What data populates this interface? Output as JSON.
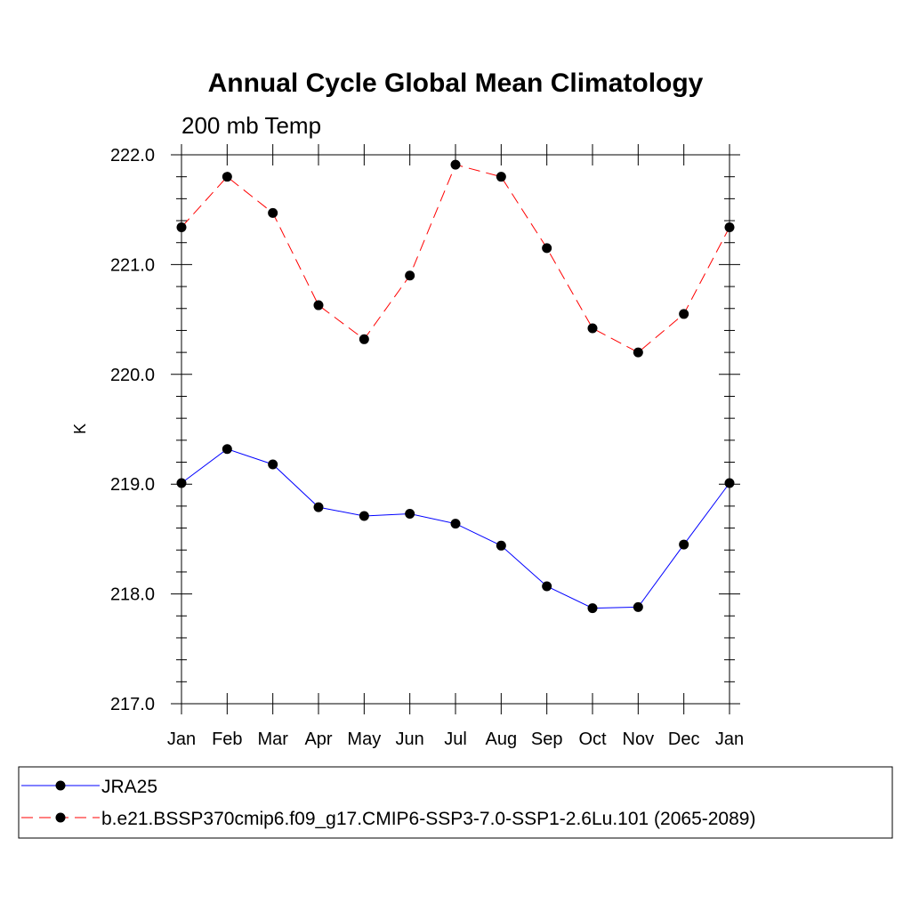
{
  "chart_data": {
    "type": "line",
    "title": "Annual Cycle Global Mean Climatology",
    "subtitle": "200 mb Temp",
    "ylabel": "K",
    "xlabel": "",
    "categories": [
      "Jan",
      "Feb",
      "Mar",
      "Apr",
      "May",
      "Jun",
      "Jul",
      "Aug",
      "Sep",
      "Oct",
      "Nov",
      "Dec",
      "Jan"
    ],
    "ylim": [
      217.0,
      222.0
    ],
    "yticks": [
      "217.0",
      "218.0",
      "219.0",
      "220.0",
      "221.0",
      "222.0"
    ],
    "grid": false,
    "legend_position": "bottom",
    "series": [
      {
        "name": "JRA25",
        "color": "#0000ff",
        "line_style": "solid",
        "marker": "filled-circle",
        "values": [
          219.01,
          219.32,
          219.18,
          218.79,
          218.71,
          218.73,
          218.64,
          218.44,
          218.07,
          217.87,
          217.88,
          218.45,
          219.01
        ]
      },
      {
        "name": "b.e21.BSSP370cmip6.f09_g17.CMIP6-SSP3-7.0-SSP1-2.6Lu.101 (2065-2089)",
        "color": "#ff0000",
        "line_style": "dashed",
        "marker": "filled-circle",
        "values": [
          221.34,
          221.8,
          221.47,
          220.63,
          220.32,
          220.9,
          221.91,
          221.8,
          221.15,
          220.42,
          220.2,
          220.55,
          221.34
        ]
      }
    ]
  }
}
